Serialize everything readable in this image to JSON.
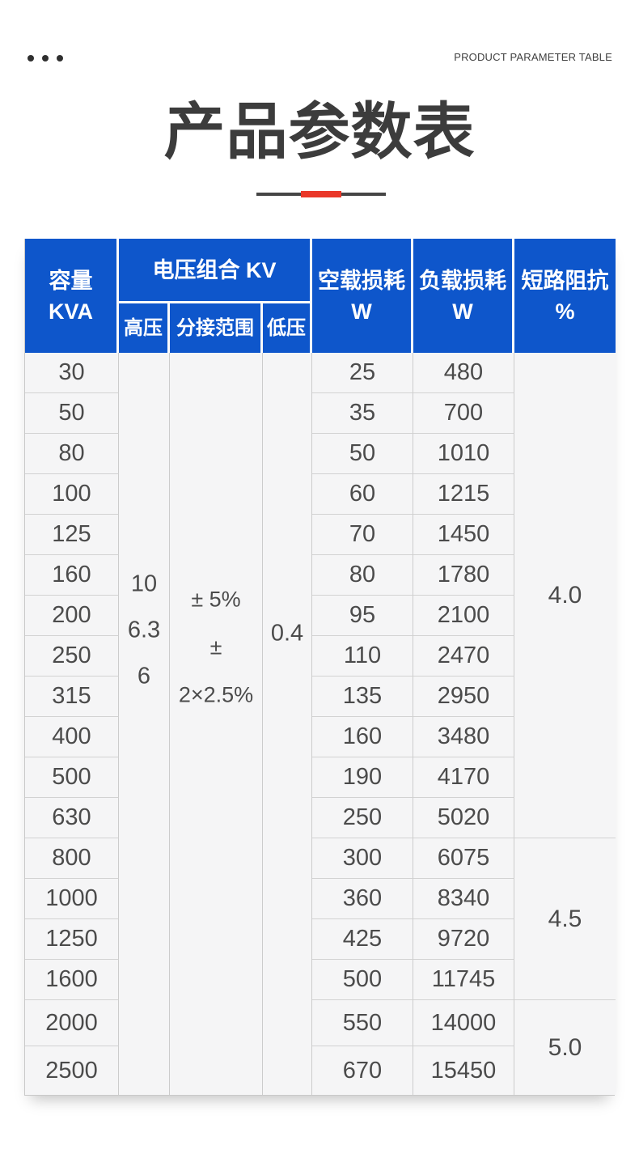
{
  "page": {
    "top_label": "PRODUCT PARAMETER TABLE",
    "title": "产品参数表"
  },
  "colors": {
    "header_blue": "#0e56cb",
    "accent_red": "#ea3829",
    "body_bg": "#f5f5f6",
    "divider_gray": "#454545",
    "border_gray": "#cccccc",
    "title_text": "#3c3c3c",
    "body_text": "#4b4b4b"
  },
  "table": {
    "headers": {
      "capacity_line1": "容量",
      "capacity_line2": "KVA",
      "voltage_group": "电压组合 KV",
      "high_voltage": "高压",
      "tap_range": "分接范围",
      "low_voltage": "低压",
      "no_load_loss_line1": "空载损耗",
      "no_load_loss_line2": "W",
      "load_loss_line1": "负载损耗",
      "load_loss_line2": "W",
      "impedance_line1": "短路阻抗",
      "impedance_line2": "%"
    },
    "merged_values": {
      "high_voltage_values": [
        "10",
        "6.3",
        "6"
      ],
      "tap_range_values": [
        "± 5%",
        "± 2×2.5%"
      ],
      "low_voltage_value": "0.4"
    },
    "rows": [
      {
        "capacity": "30",
        "no_load_loss": "25",
        "load_loss": "480"
      },
      {
        "capacity": "50",
        "no_load_loss": "35",
        "load_loss": "700"
      },
      {
        "capacity": "80",
        "no_load_loss": "50",
        "load_loss": "1010"
      },
      {
        "capacity": "100",
        "no_load_loss": "60",
        "load_loss": "1215"
      },
      {
        "capacity": "125",
        "no_load_loss": "70",
        "load_loss": "1450"
      },
      {
        "capacity": "160",
        "no_load_loss": "80",
        "load_loss": "1780"
      },
      {
        "capacity": "200",
        "no_load_loss": "95",
        "load_loss": "2100"
      },
      {
        "capacity": "250",
        "no_load_loss": "110",
        "load_loss": "2470"
      },
      {
        "capacity": "315",
        "no_load_loss": "135",
        "load_loss": "2950"
      },
      {
        "capacity": "400",
        "no_load_loss": "160",
        "load_loss": "3480"
      },
      {
        "capacity": "500",
        "no_load_loss": "190",
        "load_loss": "4170"
      },
      {
        "capacity": "630",
        "no_load_loss": "250",
        "load_loss": "5020"
      },
      {
        "capacity": "800",
        "no_load_loss": "300",
        "load_loss": "6075"
      },
      {
        "capacity": "1000",
        "no_load_loss": "360",
        "load_loss": "8340"
      },
      {
        "capacity": "1250",
        "no_load_loss": "425",
        "load_loss": "9720"
      },
      {
        "capacity": "1600",
        "no_load_loss": "500",
        "load_loss": "11745"
      },
      {
        "capacity": "2000",
        "no_load_loss": "550",
        "load_loss": "14000"
      },
      {
        "capacity": "2500",
        "no_load_loss": "670",
        "load_loss": "15450"
      }
    ],
    "impedance_groups": [
      {
        "value": "4.0",
        "row_span": 12
      },
      {
        "value": "4.5",
        "row_span": 4
      },
      {
        "value": "5.0",
        "row_span": 2
      }
    ]
  }
}
